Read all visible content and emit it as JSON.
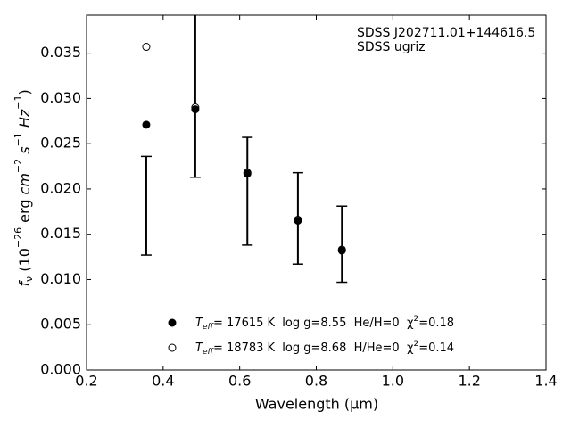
{
  "chart_data": {
    "type": "scatter",
    "annotations": [
      "SDSS J202711.01+144616.5",
      "SDSS ugriz"
    ],
    "x_label": "Wavelength (μm)",
    "y_label": [
      "f",
      "ν",
      " (10",
      "−26",
      " erg ",
      "cm",
      "−2",
      " s",
      "−1",
      " Hz",
      "−1",
      ")"
    ],
    "xlim": [
      0.2,
      1.4
    ],
    "xticks": [
      0.2,
      0.4,
      0.6,
      0.8,
      {
        "value": 1,
        "label": "1.0"
      },
      1.2,
      1.4
    ],
    "ylim": [
      0,
      0.0392
    ],
    "yticks": [
      {
        "value": 0,
        "label": "0.000"
      },
      0.005,
      {
        "value": 0.01,
        "label": "0.010"
      },
      0.015,
      {
        "value": 0.02,
        "label": "0.020"
      },
      0.025,
      {
        "value": 0.03,
        "label": "0.030"
      },
      0.035
    ],
    "x": [
      0.356,
      0.484,
      0.62,
      0.752,
      0.867
    ],
    "observed": {
      "values": [
        0.01815,
        0.0305,
        0.01975,
        0.01675,
        0.0139
      ],
      "errors": [
        0.00545,
        0.0092,
        0.00595,
        0.00505,
        0.0042
      ],
      "color": "#000000"
    },
    "series": [
      {
        "name": "Teff= 17615 K  log g=8.55  He/H=0  χ2=0.18",
        "marker": "filled",
        "color": "#000000",
        "values": [
          0.0271,
          0.0288,
          0.0217,
          0.0165,
          0.0132
        ]
      },
      {
        "name": "Teff= 18783 K  log g=8.68  H/He=0  χ2=0.14",
        "marker": "open",
        "color": "#000000",
        "values": [
          0.0357,
          0.029,
          0.0218,
          0.0166,
          0.0133
        ]
      }
    ]
  }
}
